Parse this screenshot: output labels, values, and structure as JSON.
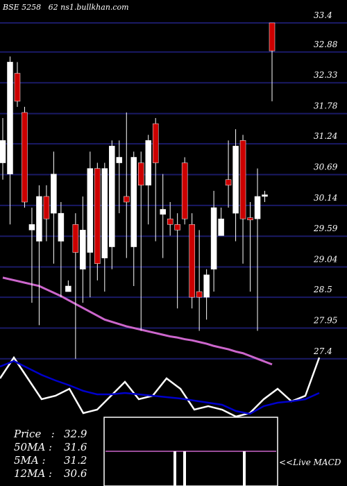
{
  "chart_data": [
    {
      "type": "candlestick",
      "title": "BSE 5258   62 ns1.bullkhan.com",
      "ylim": [
        27.1,
        33.8
      ],
      "yticks": [
        33.4,
        32.88,
        32.33,
        31.78,
        31.24,
        30.69,
        30.14,
        29.59,
        29.04,
        28.5,
        27.95,
        27.4
      ],
      "grid": true,
      "up_color": "#ffffff",
      "down_color": "#cc0000",
      "open": [
        30.9,
        30.7,
        32.5,
        31.8,
        29.7,
        29.5,
        30.3,
        30.0,
        29.5,
        28.6,
        29.8,
        29.0,
        29.3,
        30.8,
        29.2,
        29.4,
        30.9,
        30.3,
        29.4,
        30.9,
        30.5,
        31.6,
        29.98,
        29.9,
        29.8,
        30.9,
        29.8,
        28.6,
        28.5,
        29.0,
        29.6,
        30.6,
        30.0,
        31.3,
        29.92,
        29.9,
        30.3,
        33.4
      ],
      "high": [
        31.7,
        32.8,
        32.7,
        31.9,
        30.1,
        30.5,
        30.5,
        31.1,
        30.2,
        28.8,
        30.0,
        30.3,
        31.1,
        30.9,
        30.9,
        31.3,
        31.3,
        31.8,
        31.1,
        31.1,
        31.4,
        31.7,
        30.7,
        30.2,
        30.0,
        31.0,
        30.0,
        29.7,
        29.0,
        30.4,
        30.1,
        31.3,
        31.5,
        31.4,
        30.2,
        30.8,
        30.4,
        33.4
      ],
      "low": [
        30.6,
        29.8,
        31.9,
        30.1,
        28.4,
        28.0,
        29.5,
        29.1,
        28.5,
        28.6,
        27.4,
        28.4,
        28.5,
        28.8,
        28.6,
        29.0,
        30.0,
        29.2,
        28.7,
        27.9,
        29.8,
        29.5,
        29.2,
        29.6,
        28.3,
        29.8,
        28.3,
        27.9,
        28.1,
        28.6,
        29.6,
        30.1,
        29.5,
        29.1,
        28.6,
        27.9,
        30.2,
        32.0
      ],
      "close": [
        31.3,
        32.7,
        32.0,
        30.2,
        29.8,
        30.3,
        29.9,
        30.7,
        30.0,
        28.7,
        29.3,
        29.7,
        30.8,
        29.1,
        30.8,
        31.2,
        31.0,
        30.2,
        31.0,
        30.5,
        31.3,
        30.9,
        30.07,
        29.8,
        29.7,
        29.9,
        28.5,
        28.5,
        28.9,
        30.1,
        29.9,
        30.5,
        31.2,
        29.9,
        29.88,
        30.3,
        30.33,
        32.9
      ],
      "ma": {
        "color": "#cc66cc",
        "values": [
          28.85,
          28.82,
          28.79,
          28.76,
          28.73,
          28.7,
          28.64,
          28.58,
          28.52,
          28.45,
          28.38,
          28.31,
          28.24,
          28.17,
          28.1,
          28.06,
          28.02,
          27.98,
          27.95,
          27.92,
          27.89,
          27.86,
          27.83,
          27.8,
          27.78,
          27.75,
          27.73,
          27.7,
          27.67,
          27.63,
          27.6,
          27.57,
          27.53,
          27.5,
          27.45,
          27.4,
          27.35,
          27.3
        ]
      },
      "info": [
        {
          "label": "Price   :",
          "value": 32.9
        },
        {
          "label": "50MA :",
          "value": 31.6
        },
        {
          "label": "5MA :",
          "value": 31.2
        },
        {
          "label": "12MA :",
          "value": 30.6
        }
      ],
      "note": "<<Live MACD"
    },
    {
      "type": "line",
      "ylim": [
        0,
        100
      ],
      "series": [
        {
          "color": "#ffffff",
          "values": [
            55,
            85,
            55,
            25,
            30,
            40,
            5,
            10,
            30,
            50,
            25,
            30,
            55,
            40,
            10,
            15,
            10,
            0,
            5,
            25,
            40,
            22,
            30,
            85
          ]
        },
        {
          "color": "#0000cc",
          "values": [
            72,
            80,
            70,
            60,
            52,
            45,
            37,
            32,
            32,
            34,
            32,
            30,
            28,
            26,
            23,
            20,
            17,
            8,
            4,
            15,
            20,
            22,
            25,
            34
          ]
        }
      ]
    }
  ]
}
